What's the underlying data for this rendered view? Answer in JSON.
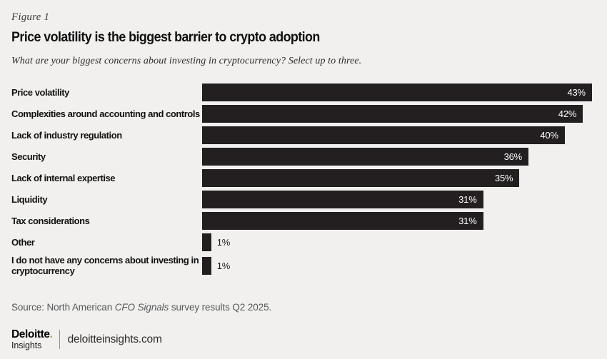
{
  "figure_label": "Figure 1",
  "title": "Price volatility is the biggest barrier to crypto adoption",
  "subtitle": "What are your biggest concerns about investing in cryptocurrency? Select up to three.",
  "chart_data": {
    "type": "bar",
    "orientation": "horizontal",
    "categories": [
      "Price volatility",
      "Complexities around accounting and controls",
      "Lack of industry regulation",
      "Security",
      "Lack of internal expertise",
      "Liquidity",
      "Tax considerations",
      "Other",
      "I do not have any concerns about investing in cryptocurrency"
    ],
    "values": [
      43,
      42,
      40,
      36,
      35,
      31,
      31,
      1,
      1
    ],
    "value_labels": [
      "43%",
      "42%",
      "40%",
      "36%",
      "35%",
      "31%",
      "31%",
      "1%",
      "1%"
    ],
    "xlim": [
      0,
      43.4
    ],
    "inside_label_min": 5,
    "grid": false,
    "legend": false,
    "bar_color": "#231f20",
    "value_label_color_inside": "#ffffff",
    "value_label_color_outside": "#1a1a1a"
  },
  "source": {
    "prefix": "Source: North American ",
    "italic": "CFO Signals",
    "suffix": " survey results Q2 2025."
  },
  "footer": {
    "logo_line1": "Deloitte",
    "logo_dot": ".",
    "logo_line2": "Insights",
    "site": "deloitteinsights.com"
  },
  "colors": {
    "background": "#f1f0ee",
    "accent_green": "#86bc25",
    "source_text": "#57585a"
  }
}
